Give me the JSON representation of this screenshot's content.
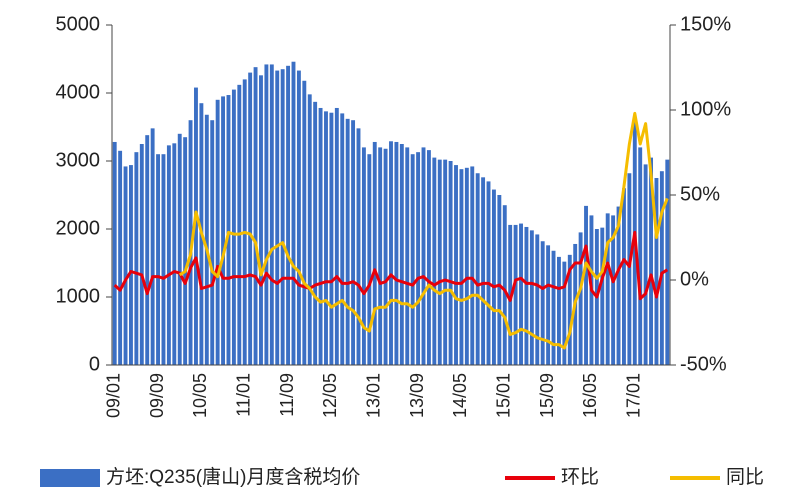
{
  "chart_data": {
    "type": "bar",
    "categories": [
      "09/01",
      null,
      null,
      null,
      null,
      null,
      null,
      null,
      "09/09",
      null,
      null,
      null,
      null,
      null,
      null,
      null,
      "10/05",
      null,
      null,
      null,
      null,
      null,
      null,
      null,
      "11/01",
      null,
      null,
      null,
      null,
      null,
      null,
      null,
      "11/09",
      null,
      null,
      null,
      null,
      null,
      null,
      null,
      "12/05",
      null,
      null,
      null,
      null,
      null,
      null,
      null,
      "13/01",
      null,
      null,
      null,
      null,
      null,
      null,
      null,
      "13/09",
      null,
      null,
      null,
      null,
      null,
      null,
      null,
      "14/05",
      null,
      null,
      null,
      null,
      null,
      null,
      null,
      "15/01",
      null,
      null,
      null,
      null,
      null,
      null,
      null,
      "15/09",
      null,
      null,
      null,
      null,
      null,
      null,
      null,
      "16/05",
      null,
      null,
      null,
      null,
      null,
      null,
      null,
      "17/01",
      null,
      null,
      null,
      null,
      null,
      null
    ],
    "series": [
      {
        "name": "方坯:Q235(唐山)月度含税均价",
        "color": "#3b6fc4",
        "values": [
          3280,
          3150,
          2920,
          2940,
          3130,
          3250,
          3380,
          3480,
          3100,
          3100,
          3230,
          3260,
          3400,
          3350,
          3600,
          4080,
          3850,
          3680,
          3600,
          3900,
          3950,
          3970,
          4050,
          4120,
          4200,
          4300,
          4380,
          4260,
          4420,
          4420,
          4330,
          4350,
          4400,
          4460,
          4330,
          4180,
          3980,
          3870,
          3780,
          3730,
          3710,
          3780,
          3700,
          3620,
          3600,
          3480,
          3200,
          3100,
          3280,
          3200,
          3180,
          3290,
          3280,
          3250,
          3200,
          3100,
          3130,
          3200,
          3160,
          3050,
          3020,
          3020,
          3000,
          2940,
          2880,
          2900,
          2920,
          2820,
          2760,
          2700,
          2580,
          2500,
          2350,
          2060,
          2060,
          2080,
          2030,
          1980,
          1920,
          1820,
          1760,
          1680,
          1590,
          1520,
          1620,
          1780,
          1950,
          2340,
          2200,
          2000,
          2020,
          2230,
          2200,
          2330,
          2600,
          2820,
          3600,
          3200,
          2950,
          3050,
          2750,
          2850,
          3020
        ]
      },
      {
        "name": "环比",
        "color": "#e8000b",
        "axis": "y2",
        "values": [
          -3,
          -6,
          0,
          5,
          4,
          3,
          -8,
          2,
          2,
          1,
          3,
          5,
          4,
          -2,
          7,
          13,
          -5,
          -4,
          -3,
          8,
          1,
          1,
          2,
          2,
          2,
          3,
          2,
          -3,
          4,
          0,
          -2,
          1,
          1,
          1,
          -3,
          -4,
          -5,
          -3,
          -2,
          -1,
          -1,
          2,
          -2,
          -2,
          -1,
          -3,
          -8,
          -3,
          6,
          -2,
          -1,
          3,
          0,
          -1,
          -2,
          -3,
          1,
          2,
          -1,
          -3,
          -1,
          0,
          -1,
          -2,
          -2,
          1,
          1,
          -3,
          -2,
          -2,
          -4,
          -3,
          -6,
          -12,
          0,
          1,
          -2,
          -2,
          -3,
          -5,
          -3,
          -4,
          -5,
          -4,
          6,
          10,
          10,
          20,
          -6,
          -10,
          1,
          10,
          -1,
          6,
          12,
          8,
          28,
          -11,
          -8,
          3,
          -10,
          4,
          6
        ]
      },
      {
        "name": "同比",
        "color": "#f5bd00",
        "axis": "y2",
        "values": [
          null,
          null,
          null,
          null,
          null,
          null,
          null,
          null,
          null,
          null,
          null,
          null,
          3,
          5,
          15,
          40,
          28,
          18,
          5,
          2,
          14,
          28,
          27,
          27,
          28,
          27,
          22,
          3,
          12,
          18,
          20,
          22,
          14,
          8,
          5,
          -2,
          -5,
          -10,
          -13,
          -12,
          -16,
          -14,
          -12,
          -16,
          -18,
          -22,
          -28,
          -30,
          -17,
          -16,
          -16,
          -12,
          -12,
          -14,
          -14,
          -16,
          -13,
          -8,
          -3,
          -6,
          -8,
          -6,
          -6,
          -11,
          -12,
          -11,
          -9,
          -9,
          -12,
          -15,
          -18,
          -18,
          -22,
          -32,
          -31,
          -29,
          -30,
          -32,
          -34,
          -35,
          -36,
          -38,
          -38,
          -40,
          -31,
          -13,
          -5,
          10,
          5,
          1,
          5,
          22,
          25,
          32,
          55,
          80,
          98,
          80,
          92,
          62,
          25,
          40,
          48
        ]
      }
    ],
    "ylim": [
      0,
      5000
    ],
    "yticks": [
      0,
      1000,
      2000,
      3000,
      4000,
      5000
    ],
    "y2lim": [
      -50,
      150
    ],
    "y2ticks": [
      {
        "value": -50,
        "label": "-50%"
      },
      {
        "value": 0,
        "label": "0%"
      },
      {
        "value": 50,
        "label": "50%"
      },
      {
        "value": 100,
        "label": "100%"
      },
      {
        "value": 150,
        "label": "150%"
      }
    ]
  }
}
